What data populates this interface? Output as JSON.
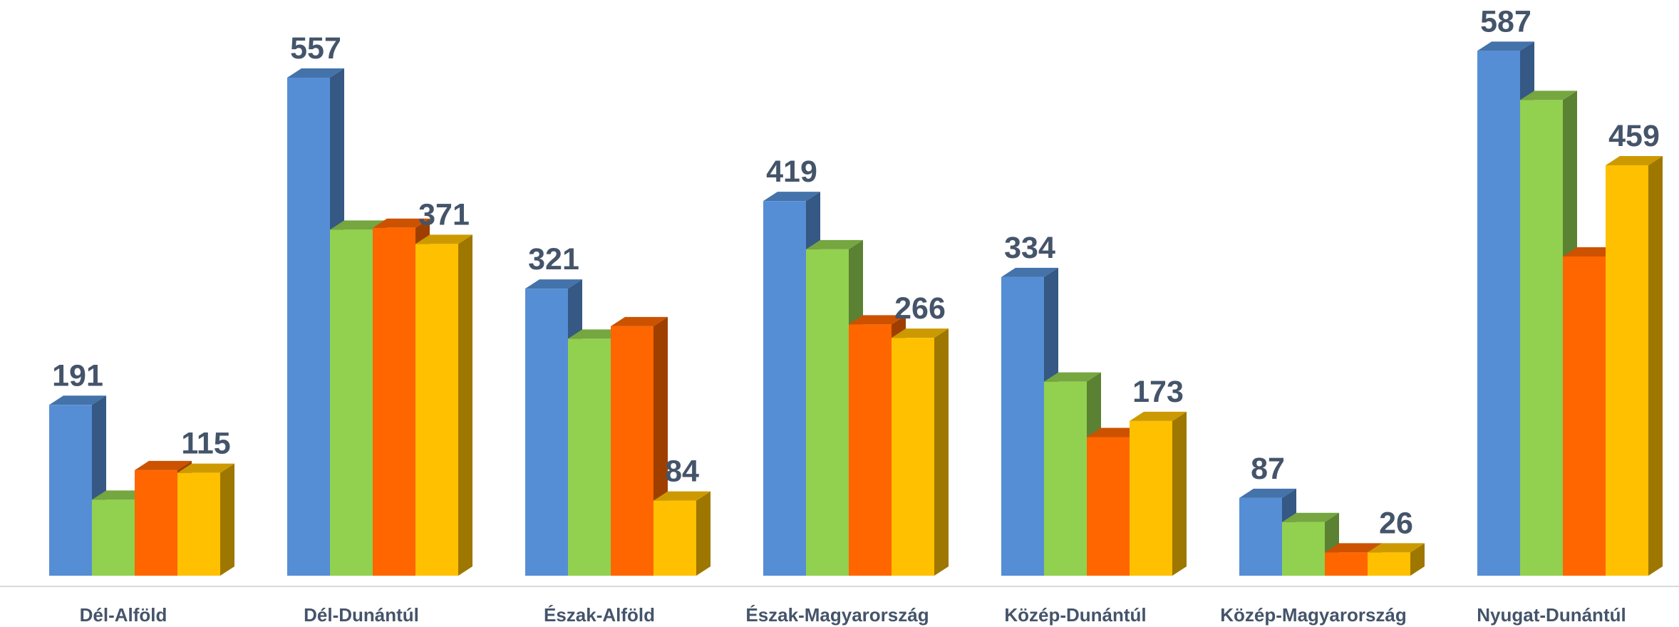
{
  "chart_data": {
    "type": "bar3d",
    "categories": [
      "Dél-Alföld",
      "Dél-Dunántúl",
      "Észak-Alföld",
      "Észak-Magyarország",
      "Közép-Dunántúl",
      "Közép-Magyarország",
      "Nyugat-Dunántúl"
    ],
    "series": [
      {
        "color": "#558ed5",
        "show_labels": true,
        "values": [
          191,
          557,
          321,
          419,
          334,
          87,
          587
        ]
      },
      {
        "color": "#92d050",
        "show_labels": false,
        "values": [
          85,
          387,
          265,
          365,
          217,
          60,
          532
        ]
      },
      {
        "color": "#ff6600",
        "show_labels": false,
        "values": [
          118,
          389,
          279,
          281,
          155,
          26,
          357
        ]
      },
      {
        "color": "#ffc000",
        "show_labels": true,
        "values": [
          115,
          371,
          84,
          266,
          173,
          26,
          459
        ]
      }
    ],
    "ylim": [
      0,
      600
    ]
  }
}
